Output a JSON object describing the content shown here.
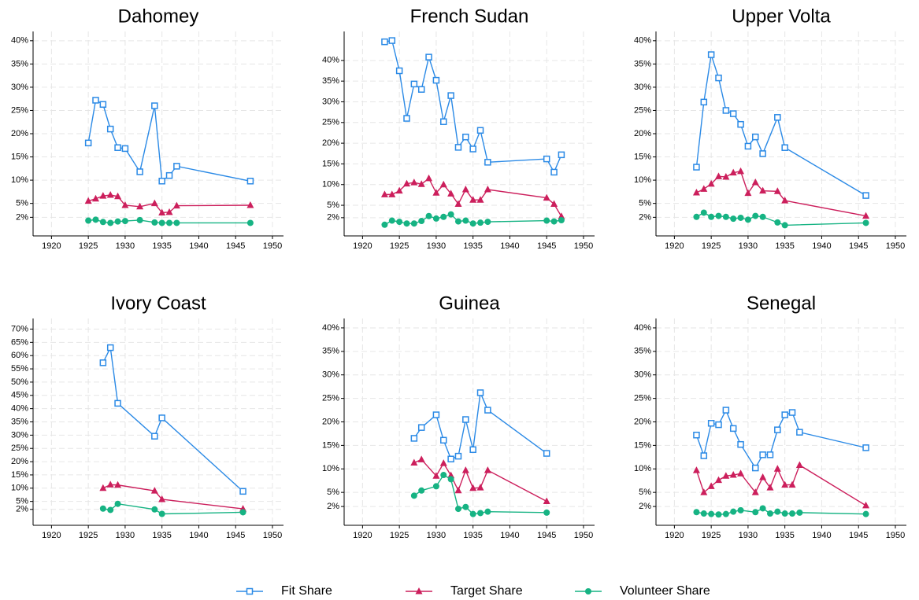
{
  "chart_data": [
    {
      "type": "line",
      "title": "Dahomey",
      "x": [
        1925,
        1926,
        1927,
        1928,
        1929,
        1930,
        1932,
        1934,
        1935,
        1936,
        1937,
        1947
      ],
      "series": [
        {
          "name": "Fit Share",
          "color": "#2b8ae6",
          "values": [
            18,
            27.2,
            26.3,
            21,
            17,
            16.8,
            11.8,
            26,
            9.8,
            11,
            13,
            9.8
          ]
        },
        {
          "name": "Target Share",
          "color": "#cc1f5c",
          "values": [
            5.5,
            6,
            6.6,
            6.8,
            6.5,
            4.6,
            4.3,
            5,
            3,
            3.1,
            4.5,
            4.6
          ]
        },
        {
          "name": "Volunteer Share",
          "color": "#16b383",
          "values": [
            1.3,
            1.5,
            1,
            0.8,
            1.1,
            1.2,
            1.4,
            0.9,
            0.8,
            0.8,
            0.8,
            0.8
          ]
        }
      ],
      "xlim": [
        1917.5,
        1951.5
      ],
      "xticks": [
        1920,
        1925,
        1930,
        1935,
        1940,
        1945,
        1950
      ],
      "ylim": [
        -2,
        42
      ],
      "yticks": [
        {
          "value": 2,
          "label": "2%"
        },
        {
          "value": 5,
          "label": "5%"
        },
        {
          "value": 10,
          "label": "10%"
        },
        {
          "value": 15,
          "label": "15%"
        },
        {
          "value": 20,
          "label": "20%"
        },
        {
          "value": 25,
          "label": "25%"
        },
        {
          "value": 30,
          "label": "30%"
        },
        {
          "value": 35,
          "label": "35%"
        },
        {
          "value": 40,
          "label": "40%"
        }
      ],
      "grid": true
    },
    {
      "type": "line",
      "title": "French Sudan",
      "x": [
        1923,
        1924,
        1925,
        1926,
        1927,
        1928,
        1929,
        1930,
        1931,
        1932,
        1933,
        1934,
        1935,
        1936,
        1937,
        1945,
        1946,
        1947
      ],
      "series": [
        {
          "name": "Fit Share",
          "color": "#2b8ae6",
          "values": [
            44.5,
            44.8,
            37.5,
            26,
            34.3,
            33,
            40.8,
            35.2,
            25.2,
            31.5,
            19,
            21.5,
            18.6,
            23.1,
            15.4,
            16.2,
            13,
            17.2
          ]
        },
        {
          "name": "Target Share",
          "color": "#cc1f5c",
          "values": [
            7.6,
            7.6,
            8.5,
            10.2,
            10.5,
            10.1,
            11.5,
            8,
            10,
            7.8,
            5.3,
            8.8,
            6.3,
            6.3,
            8.8,
            6.8,
            5.3,
            2.3
          ]
        },
        {
          "name": "Volunteer Share",
          "color": "#16b383",
          "values": [
            0.3,
            1.3,
            1,
            0.6,
            0.6,
            1.2,
            2.4,
            1.8,
            2.2,
            2.8,
            1.1,
            1.3,
            0.6,
            0.8,
            1,
            1.3,
            1.1,
            1.4
          ]
        }
      ],
      "xlim": [
        1917.5,
        1951.5
      ],
      "xticks": [
        1920,
        1925,
        1930,
        1935,
        1940,
        1945,
        1950
      ],
      "ylim": [
        -2.4,
        47
      ],
      "yticks": [
        {
          "value": 2,
          "label": "2%"
        },
        {
          "value": 5,
          "label": "5%"
        },
        {
          "value": 10,
          "label": "10%"
        },
        {
          "value": 15,
          "label": "15%"
        },
        {
          "value": 20,
          "label": "20%"
        },
        {
          "value": 25,
          "label": "25%"
        },
        {
          "value": 30,
          "label": "30%"
        },
        {
          "value": 35,
          "label": "35%"
        },
        {
          "value": 40,
          "label": "40%"
        }
      ],
      "grid": true
    },
    {
      "type": "line",
      "title": "Upper Volta",
      "x": [
        1923,
        1924,
        1925,
        1926,
        1927,
        1928,
        1929,
        1930,
        1931,
        1932,
        1934,
        1935,
        1946
      ],
      "series": [
        {
          "name": "Fit Share",
          "color": "#2b8ae6",
          "values": [
            12.8,
            26.8,
            37,
            32,
            25,
            24.3,
            22,
            17.3,
            19.3,
            15.7,
            23.5,
            17,
            6.7
          ]
        },
        {
          "name": "Target Share",
          "color": "#cc1f5c",
          "values": [
            7.3,
            8.1,
            9.2,
            10.8,
            10.7,
            11.6,
            11.9,
            7.2,
            9.5,
            7.7,
            7.6,
            5.6,
            2.3
          ]
        },
        {
          "name": "Volunteer Share",
          "color": "#16b383",
          "values": [
            2.1,
            3,
            2.1,
            2.3,
            2.1,
            1.7,
            1.9,
            1.5,
            2.3,
            2.1,
            0.9,
            0.3,
            0.8
          ]
        }
      ],
      "xlim": [
        1917.5,
        1951.5
      ],
      "xticks": [
        1920,
        1925,
        1930,
        1935,
        1940,
        1945,
        1950
      ],
      "ylim": [
        -2,
        42
      ],
      "yticks": [
        {
          "value": 2,
          "label": "2%"
        },
        {
          "value": 5,
          "label": "5%"
        },
        {
          "value": 10,
          "label": "10%"
        },
        {
          "value": 15,
          "label": "15%"
        },
        {
          "value": 20,
          "label": "20%"
        },
        {
          "value": 25,
          "label": "25%"
        },
        {
          "value": 30,
          "label": "30%"
        },
        {
          "value": 35,
          "label": "35%"
        },
        {
          "value": 40,
          "label": "40%"
        }
      ],
      "grid": true
    },
    {
      "type": "line",
      "title": "Ivory Coast",
      "x": [
        1927,
        1928,
        1929,
        1934,
        1935,
        1946
      ],
      "series": [
        {
          "name": "Fit Share",
          "color": "#2b8ae6",
          "values": [
            57.3,
            63,
            42,
            29.6,
            36.5,
            8.8
          ]
        },
        {
          "name": "Target Share",
          "color": "#cc1f5c",
          "values": [
            10,
            11.3,
            11.2,
            9,
            5.8,
            2.2
          ]
        },
        {
          "name": "Volunteer Share",
          "color": "#16b383",
          "values": [
            2.3,
            1.8,
            4.1,
            2,
            0.3,
            0.9
          ]
        }
      ],
      "xlim": [
        1917.5,
        1951.5
      ],
      "xticks": [
        1920,
        1925,
        1930,
        1935,
        1940,
        1945,
        1950
      ],
      "ylim": [
        -4,
        74
      ],
      "yticks": [
        {
          "value": 2,
          "label": "2%"
        },
        {
          "value": 5,
          "label": "5%"
        },
        {
          "value": 10,
          "label": "10%"
        },
        {
          "value": 15,
          "label": "15%"
        },
        {
          "value": 20,
          "label": "20%"
        },
        {
          "value": 25,
          "label": "25%"
        },
        {
          "value": 30,
          "label": "30%"
        },
        {
          "value": 35,
          "label": "35%"
        },
        {
          "value": 40,
          "label": "40%"
        },
        {
          "value": 45,
          "label": "45%"
        },
        {
          "value": 50,
          "label": "50%"
        },
        {
          "value": 55,
          "label": "55%"
        },
        {
          "value": 60,
          "label": "60%"
        },
        {
          "value": 65,
          "label": "65%"
        },
        {
          "value": 70,
          "label": "70%"
        }
      ],
      "grid": true
    },
    {
      "type": "line",
      "title": "Guinea",
      "x": [
        1927,
        1928,
        1930,
        1931,
        1932,
        1933,
        1934,
        1935,
        1936,
        1937,
        1945
      ],
      "series": [
        {
          "name": "Fit Share",
          "color": "#2b8ae6",
          "values": [
            16.5,
            18.8,
            21.5,
            16.1,
            12.1,
            12.7,
            20.5,
            14.1,
            26.2,
            22.5,
            13.3
          ]
        },
        {
          "name": "Target Share",
          "color": "#cc1f5c",
          "values": [
            11.3,
            12,
            8.5,
            11.2,
            8.6,
            5.4,
            9.7,
            5.9,
            6,
            9.7,
            3.1
          ]
        },
        {
          "name": "Volunteer Share",
          "color": "#16b383",
          "values": [
            4.3,
            5.4,
            6.3,
            8.7,
            7.8,
            1.5,
            1.9,
            0.4,
            0.6,
            0.9,
            0.7
          ]
        }
      ],
      "xlim": [
        1917.5,
        1951.5
      ],
      "xticks": [
        1920,
        1925,
        1930,
        1935,
        1940,
        1945,
        1950
      ],
      "ylim": [
        -2,
        42
      ],
      "yticks": [
        {
          "value": 2,
          "label": "2%"
        },
        {
          "value": 5,
          "label": "5%"
        },
        {
          "value": 10,
          "label": "10%"
        },
        {
          "value": 15,
          "label": "15%"
        },
        {
          "value": 20,
          "label": "20%"
        },
        {
          "value": 25,
          "label": "25%"
        },
        {
          "value": 30,
          "label": "30%"
        },
        {
          "value": 35,
          "label": "35%"
        },
        {
          "value": 40,
          "label": "40%"
        }
      ],
      "grid": true
    },
    {
      "type": "line",
      "title": "Senegal",
      "x": [
        1923,
        1924,
        1925,
        1926,
        1927,
        1928,
        1929,
        1931,
        1932,
        1933,
        1934,
        1935,
        1936,
        1937,
        1946
      ],
      "series": [
        {
          "name": "Fit Share",
          "color": "#2b8ae6",
          "values": [
            17.2,
            12.8,
            19.7,
            19.4,
            22.5,
            18.6,
            15.2,
            10.2,
            13,
            13,
            18.3,
            21.5,
            22,
            17.8,
            14.5
          ]
        },
        {
          "name": "Target Share",
          "color": "#cc1f5c",
          "values": [
            9.7,
            5,
            6.3,
            7.6,
            8.5,
            8.7,
            9,
            5,
            8.2,
            6,
            10,
            6.6,
            6.6,
            10.8,
            2.2
          ]
        },
        {
          "name": "Volunteer Share",
          "color": "#16b383",
          "values": [
            0.8,
            0.5,
            0.4,
            0.3,
            0.4,
            0.9,
            1.2,
            0.8,
            1.6,
            0.5,
            0.9,
            0.5,
            0.5,
            0.7,
            0.4
          ]
        }
      ],
      "xlim": [
        1917.5,
        1951.5
      ],
      "xticks": [
        1920,
        1925,
        1930,
        1935,
        1940,
        1945,
        1950
      ],
      "ylim": [
        -2,
        42
      ],
      "yticks": [
        {
          "value": 2,
          "label": "2%"
        },
        {
          "value": 5,
          "label": "5%"
        },
        {
          "value": 10,
          "label": "10%"
        },
        {
          "value": 15,
          "label": "15%"
        },
        {
          "value": 20,
          "label": "20%"
        },
        {
          "value": 25,
          "label": "25%"
        },
        {
          "value": 30,
          "label": "30%"
        },
        {
          "value": 35,
          "label": "35%"
        },
        {
          "value": 40,
          "label": "40%"
        }
      ],
      "grid": true
    }
  ]
}
